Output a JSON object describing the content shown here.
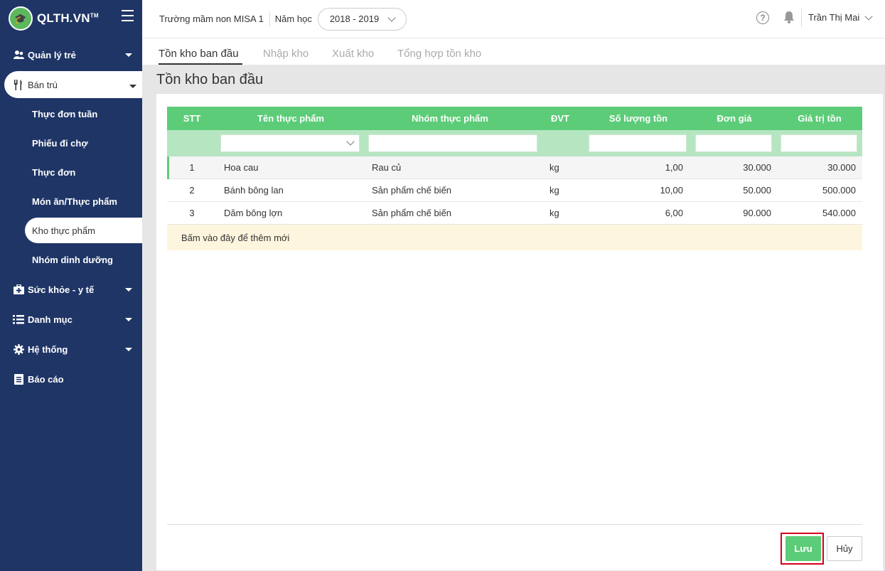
{
  "app": {
    "logo_text": "QLTH.VN",
    "logo_tm": "TM"
  },
  "header": {
    "school": "Trường mầm non MISA 1",
    "year_label": "Năm học",
    "year_value": "2018 - 2019",
    "user": "Trần Thị Mai"
  },
  "sidebar": {
    "items": [
      {
        "label": "Quản lý trẻ",
        "icon": "children-icon"
      },
      {
        "label": "Bán trú",
        "icon": "utensils-icon"
      },
      {
        "label": "Sức khỏe - y tế",
        "icon": "medkit-icon"
      },
      {
        "label": "Danh mục",
        "icon": "list-icon"
      },
      {
        "label": "Hệ thống",
        "icon": "gear-icon"
      },
      {
        "label": "Báo cáo",
        "icon": "report-icon"
      }
    ],
    "sub_items": [
      "Thực đơn tuần",
      "Phiếu đi chợ",
      "Thực đơn",
      "Món ăn/Thực phẩm",
      "Kho thực phẩm",
      "Nhóm dinh dưỡng"
    ]
  },
  "tabs": [
    "Tồn kho ban đầu",
    "Nhập kho",
    "Xuất kho",
    "Tổng hợp tồn kho"
  ],
  "page_title": "Tồn kho ban đầu",
  "table": {
    "headers": [
      "STT",
      "Tên thực phẩm",
      "Nhóm thực phẩm",
      "ĐVT",
      "Số lượng tồn",
      "Đơn giá",
      "Giá trị tồn"
    ],
    "rows": [
      [
        "1",
        "Hoa cau",
        "Rau củ",
        "kg",
        "1,00",
        "30.000",
        "30.000"
      ],
      [
        "2",
        "Bánh bông lan",
        "Sản phẩm chế biến",
        "kg",
        "10,00",
        "50.000",
        "500.000"
      ],
      [
        "3",
        "Dăm bông lợn",
        "Sản phẩm chế biến",
        "kg",
        "6,00",
        "90.000",
        "540.000"
      ]
    ],
    "add_new": "Bấm vào đây để thêm mới"
  },
  "buttons": {
    "save": "Lưu",
    "cancel": "Hủy"
  },
  "colors": {
    "sidebar": "#1f3566",
    "accent": "#5ccc78",
    "highlight": "#d0021b"
  }
}
